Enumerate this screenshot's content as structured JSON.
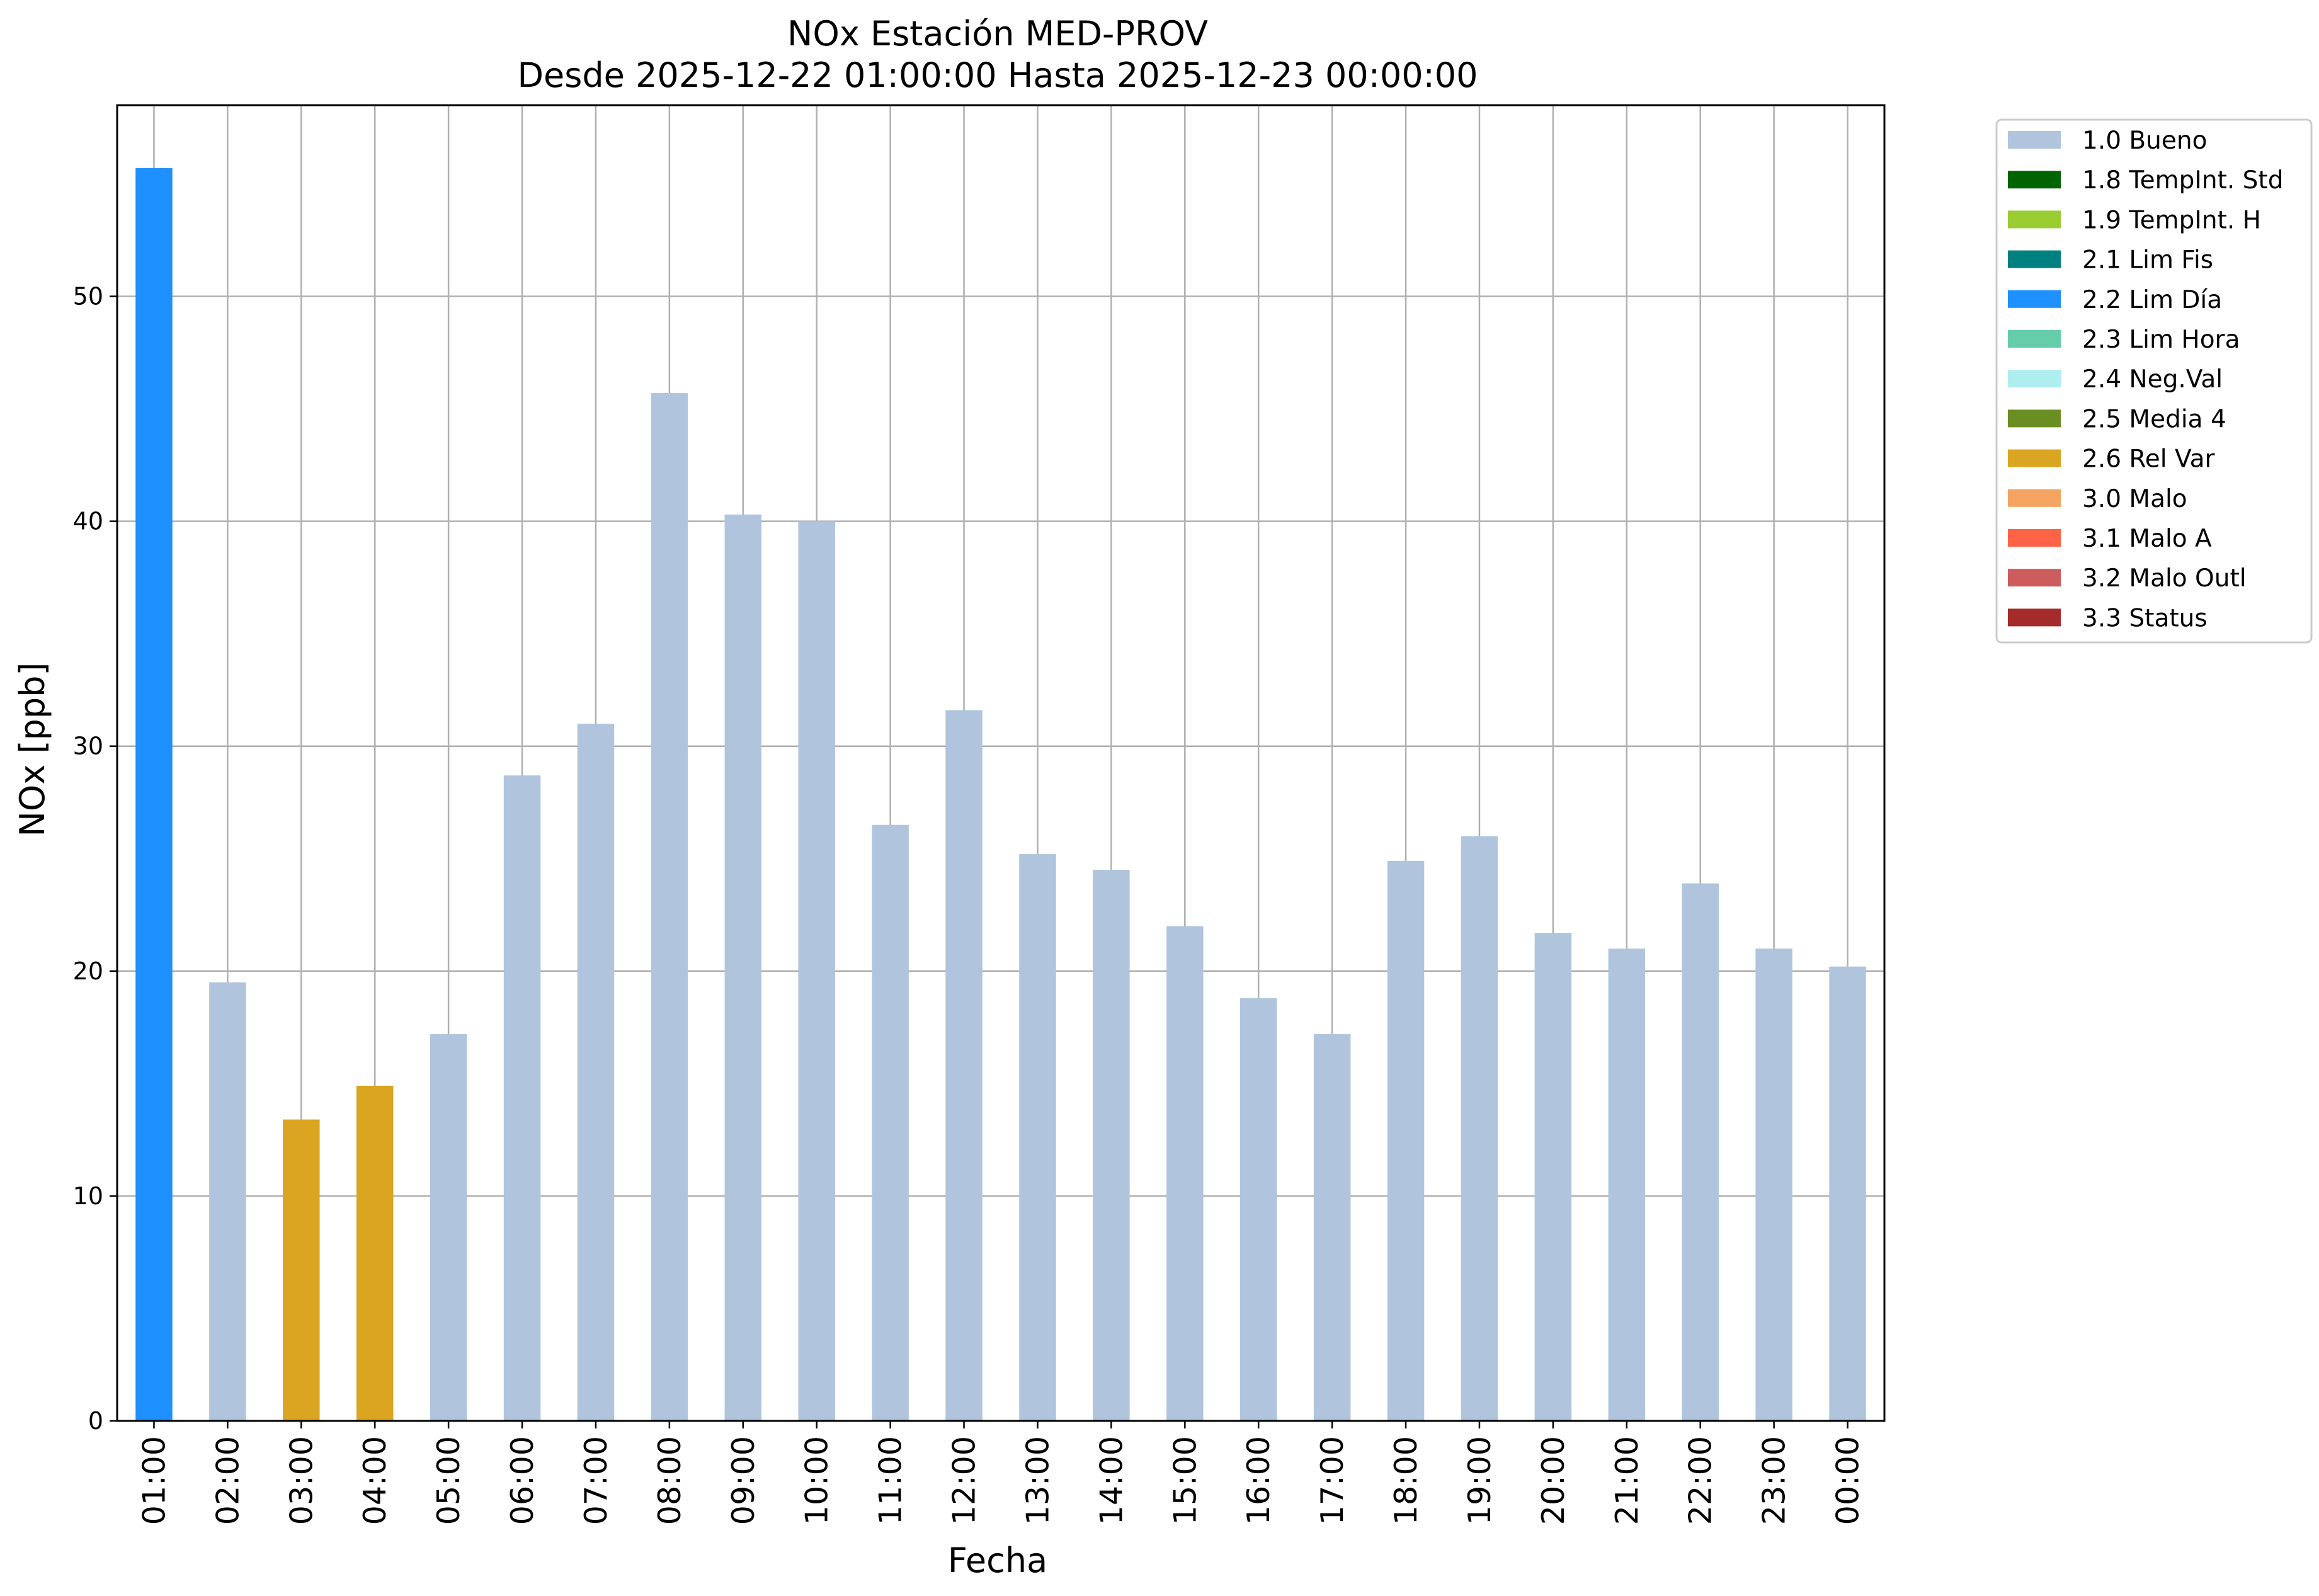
{
  "chart_data": {
    "type": "bar",
    "title": "NOx Estación MED-PROV",
    "subtitle": "Desde 2025-12-22 01:00:00 Hasta 2025-12-23 00:00:00",
    "xlabel": "Fecha",
    "ylabel": "NOx [ppb]",
    "ylim": [
      0,
      58.5
    ],
    "yticks": [
      0,
      10,
      20,
      30,
      40,
      50
    ],
    "grid": true,
    "legend_placement": "outside-top-right",
    "categories": [
      "01:00",
      "02:00",
      "03:00",
      "04:00",
      "05:00",
      "06:00",
      "07:00",
      "08:00",
      "09:00",
      "10:00",
      "11:00",
      "12:00",
      "13:00",
      "14:00",
      "15:00",
      "16:00",
      "17:00",
      "18:00",
      "19:00",
      "20:00",
      "21:00",
      "22:00",
      "23:00",
      "00:00"
    ],
    "values": [
      55.7,
      19.5,
      13.4,
      14.9,
      17.2,
      28.7,
      31.0,
      45.7,
      40.3,
      40.0,
      26.5,
      31.6,
      25.2,
      24.5,
      22.0,
      18.8,
      17.2,
      24.9,
      26.0,
      21.7,
      21.0,
      23.9,
      21.0,
      20.2
    ],
    "flags": [
      "2.2 Lim Día",
      "1.0 Bueno",
      "2.6 Rel Var",
      "2.6 Rel Var",
      "1.0 Bueno",
      "1.0 Bueno",
      "1.0 Bueno",
      "1.0 Bueno",
      "1.0 Bueno",
      "1.0 Bueno",
      "1.0 Bueno",
      "1.0 Bueno",
      "1.0 Bueno",
      "1.0 Bueno",
      "1.0 Bueno",
      "1.0 Bueno",
      "1.0 Bueno",
      "1.0 Bueno",
      "1.0 Bueno",
      "1.0 Bueno",
      "1.0 Bueno",
      "1.0 Bueno",
      "1.0 Bueno",
      "1.0 Bueno"
    ],
    "legend": [
      {
        "label": "1.0 Bueno",
        "color": "#b0c4de"
      },
      {
        "label": "1.8 TempInt. Std",
        "color": "#006400"
      },
      {
        "label": "1.9 TempInt. H",
        "color": "#9acd32"
      },
      {
        "label": "2.1 Lim Fis",
        "color": "#008080"
      },
      {
        "label": "2.2 Lim Día",
        "color": "#1e90ff"
      },
      {
        "label": "2.3 Lim Hora",
        "color": "#66cdaa"
      },
      {
        "label": "2.4 Neg.Val",
        "color": "#afeeee"
      },
      {
        "label": "2.5 Media 4",
        "color": "#6b8e23"
      },
      {
        "label": "2.6 Rel Var",
        "color": "#daa520"
      },
      {
        "label": "3.0 Malo",
        "color": "#f4a460"
      },
      {
        "label": "3.1 Malo A",
        "color": "#ff6347"
      },
      {
        "label": "3.2 Malo Outl",
        "color": "#cd5c5c"
      },
      {
        "label": "3.3 Status",
        "color": "#a52a2a"
      }
    ]
  }
}
